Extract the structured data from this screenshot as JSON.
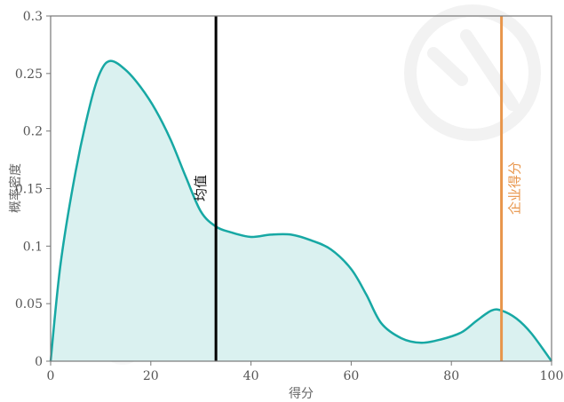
{
  "chart_data": {
    "type": "area",
    "title": "",
    "xlabel": "得分",
    "ylabel": "概率密度",
    "xlim": [
      0,
      100
    ],
    "ylim": [
      0,
      0.3
    ],
    "xticks": [
      0,
      20,
      40,
      60,
      80,
      100
    ],
    "yticks": [
      0,
      0.05,
      0.1,
      0.15,
      0.2,
      0.25,
      0.3
    ],
    "ytick_labels": [
      "0",
      "0.05",
      "0.1",
      "0.15",
      "0.2",
      "0.25",
      "0.3"
    ],
    "grid": false,
    "series": [
      {
        "x": [
          0,
          2,
          5,
          8,
          10,
          12,
          15,
          18,
          21,
          24,
          27,
          30,
          33,
          36,
          40,
          44,
          48,
          52,
          56,
          60,
          63,
          66,
          70,
          74,
          78,
          82,
          85,
          88,
          90,
          93,
          96,
          100
        ],
        "y": [
          0,
          0.085,
          0.165,
          0.225,
          0.252,
          0.261,
          0.253,
          0.238,
          0.218,
          0.192,
          0.16,
          0.13,
          0.117,
          0.112,
          0.108,
          0.11,
          0.11,
          0.105,
          0.097,
          0.08,
          0.058,
          0.033,
          0.02,
          0.016,
          0.019,
          0.025,
          0.035,
          0.044,
          0.044,
          0.037,
          0.024,
          0
        ]
      }
    ],
    "reference_lines": [
      {
        "label": "均值",
        "x": 33
      },
      {
        "label": "企业得分",
        "x": 90
      }
    ]
  },
  "colors": {
    "curve": "#17a8a4",
    "fill": "#daf1f0",
    "mean_line": "#000000",
    "company_line": "#e8954a",
    "axis": "#777777"
  }
}
